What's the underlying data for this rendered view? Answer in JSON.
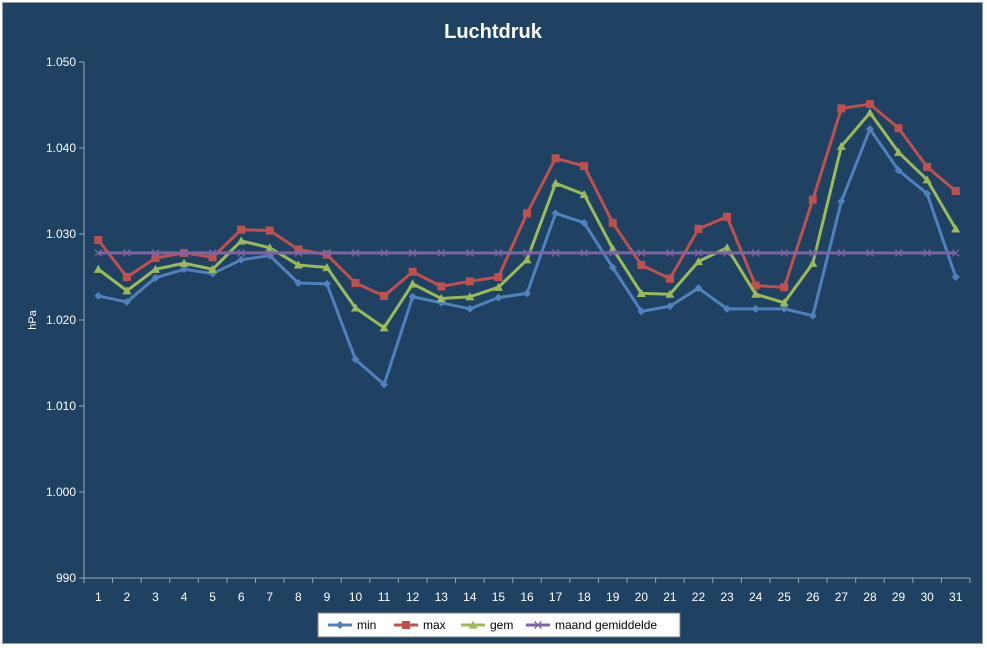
{
  "chart_data": {
    "type": "line",
    "title": "Luchtdruk",
    "ylabel": "hPa",
    "xlabel": "",
    "ylim": [
      990,
      1050
    ],
    "y_ticks": [
      "990",
      "1.000",
      "1.010",
      "1.020",
      "1.030",
      "1.040",
      "1.050"
    ],
    "y_tick_values": [
      990,
      1000,
      1010,
      1020,
      1030,
      1040,
      1050
    ],
    "categories": [
      "1",
      "2",
      "3",
      "4",
      "5",
      "6",
      "7",
      "8",
      "9",
      "10",
      "11",
      "12",
      "13",
      "14",
      "15",
      "16",
      "17",
      "18",
      "19",
      "20",
      "21",
      "22",
      "23",
      "24",
      "25",
      "26",
      "27",
      "28",
      "29",
      "30",
      "31"
    ],
    "grid": false,
    "legend_position": "bottom",
    "series": [
      {
        "name": "min",
        "color": "#4f81bd",
        "marker": "diamond",
        "values": [
          1022.8,
          1022.1,
          1024.9,
          1025.9,
          1025.4,
          1027.0,
          1027.5,
          1024.3,
          1024.2,
          1015.4,
          1012.5,
          1022.7,
          1022.0,
          1021.3,
          1022.6,
          1023.1,
          1032.4,
          1031.3,
          1026.1,
          1021.0,
          1021.6,
          1023.7,
          1021.3,
          1021.3,
          1021.3,
          1020.5,
          1033.8,
          1042.2,
          1037.4,
          1034.7,
          1025.0
        ]
      },
      {
        "name": "max",
        "color": "#c0504d",
        "marker": "square",
        "values": [
          1029.3,
          1025.0,
          1027.2,
          1027.8,
          1027.3,
          1030.5,
          1030.4,
          1028.2,
          1027.6,
          1024.3,
          1022.8,
          1025.6,
          1023.9,
          1024.5,
          1025.0,
          1032.4,
          1038.8,
          1037.9,
          1031.3,
          1026.4,
          1024.8,
          1030.6,
          1032.0,
          1024.0,
          1023.8,
          1034.0,
          1044.6,
          1045.1,
          1042.3,
          1037.8,
          1035.0
        ]
      },
      {
        "name": "gem",
        "color": "#9bbb59",
        "marker": "triangle",
        "values": [
          1025.9,
          1023.4,
          1025.9,
          1026.6,
          1025.9,
          1029.2,
          1028.4,
          1026.4,
          1026.1,
          1021.4,
          1019.1,
          1024.2,
          1022.5,
          1022.7,
          1023.8,
          1027.0,
          1035.9,
          1034.6,
          1028.3,
          1023.1,
          1023.0,
          1026.8,
          1028.4,
          1023.0,
          1022.0,
          1026.6,
          1040.2,
          1044.1,
          1039.5,
          1036.3,
          1030.6
        ]
      },
      {
        "name": "maand gemiddelde",
        "color": "#8064a2",
        "marker": "x",
        "values": [
          1027.8,
          1027.8,
          1027.8,
          1027.8,
          1027.8,
          1027.8,
          1027.8,
          1027.8,
          1027.8,
          1027.8,
          1027.8,
          1027.8,
          1027.8,
          1027.8,
          1027.8,
          1027.8,
          1027.8,
          1027.8,
          1027.8,
          1027.8,
          1027.8,
          1027.8,
          1027.8,
          1027.8,
          1027.8,
          1027.8,
          1027.8,
          1027.8,
          1027.8,
          1027.8,
          1027.8
        ]
      }
    ]
  }
}
